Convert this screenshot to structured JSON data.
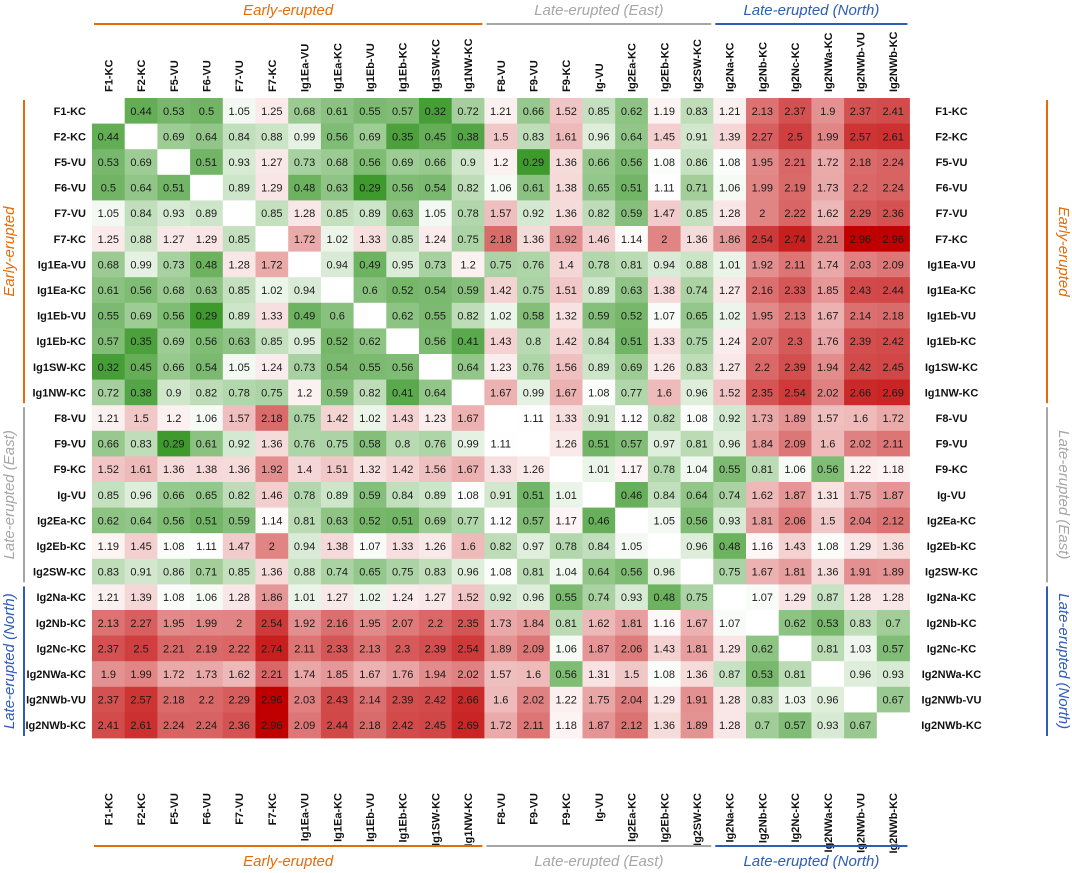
{
  "chart_data": {
    "type": "heatmap",
    "labels": [
      "F1-KC",
      "F2-KC",
      "F5-VU",
      "F6-VU",
      "F7-VU",
      "F7-KC",
      "Ig1Ea-VU",
      "Ig1Ea-KC",
      "Ig1Eb-VU",
      "Ig1Eb-KC",
      "Ig1SW-KC",
      "Ig1NW-KC",
      "F8-VU",
      "F9-VU",
      "F9-KC",
      "Ig-VU",
      "Ig2Ea-KC",
      "Ig2Eb-KC",
      "Ig2SW-KC",
      "Ig2Na-KC",
      "Ig2Nb-KC",
      "Ig2Nc-KC",
      "Ig2NWa-KC",
      "Ig2NWb-VU",
      "Ig2NWb-KC"
    ],
    "groups": [
      {
        "name": "Early-erupted",
        "start": 0,
        "end": 11,
        "color": "#E36C09"
      },
      {
        "name": "Late-erupted (East)",
        "start": 12,
        "end": 18,
        "color": "#A6A6A6"
      },
      {
        "name": "Late-erupted (North)",
        "start": 19,
        "end": 24,
        "color": "#2E5CB8"
      }
    ],
    "color_scale": {
      "low": "#3F9A2E",
      "mid": "#FFFFFF",
      "high": "#C00000",
      "mid_value": 1.1
    },
    "values": [
      [
        null,
        0.44,
        0.53,
        0.5,
        1.05,
        1.25,
        0.68,
        0.61,
        0.55,
        0.57,
        0.32,
        0.72,
        1.21,
        0.66,
        1.52,
        0.85,
        0.62,
        1.19,
        0.83,
        1.21,
        2.13,
        2.37,
        1.9,
        2.37,
        2.41
      ],
      [
        0.44,
        null,
        0.69,
        0.64,
        0.84,
        0.88,
        0.99,
        0.56,
        0.69,
        0.35,
        0.45,
        0.38,
        1.5,
        0.83,
        1.61,
        0.96,
        0.64,
        1.45,
        0.91,
        1.39,
        2.27,
        2.5,
        1.99,
        2.57,
        2.61
      ],
      [
        0.53,
        0.69,
        null,
        0.51,
        0.93,
        1.27,
        0.73,
        0.68,
        0.56,
        0.69,
        0.66,
        0.9,
        1.2,
        0.29,
        1.36,
        0.66,
        0.56,
        1.08,
        0.86,
        1.08,
        1.95,
        2.21,
        1.72,
        2.18,
        2.24
      ],
      [
        0.5,
        0.64,
        0.51,
        null,
        0.89,
        1.29,
        0.48,
        0.63,
        0.29,
        0.56,
        0.54,
        0.82,
        1.06,
        0.61,
        1.38,
        0.65,
        0.51,
        1.11,
        0.71,
        1.06,
        1.99,
        2.19,
        1.73,
        2.2,
        2.24
      ],
      [
        1.05,
        0.84,
        0.93,
        0.89,
        null,
        0.85,
        1.28,
        0.85,
        0.89,
        0.63,
        1.05,
        0.78,
        1.57,
        0.92,
        1.36,
        0.82,
        0.59,
        1.47,
        0.85,
        1.28,
        2,
        2.22,
        1.62,
        2.29,
        2.36
      ],
      [
        1.25,
        0.88,
        1.27,
        1.29,
        0.85,
        null,
        1.72,
        1.02,
        1.33,
        0.85,
        1.24,
        0.75,
        2.18,
        1.36,
        1.92,
        1.46,
        1.14,
        2,
        1.36,
        1.86,
        2.54,
        2.74,
        2.21,
        2.96,
        2.96
      ],
      [
        0.68,
        0.99,
        0.73,
        0.48,
        1.28,
        1.72,
        null,
        0.94,
        0.49,
        0.95,
        0.73,
        1.2,
        0.75,
        0.76,
        1.4,
        0.78,
        0.81,
        0.94,
        0.88,
        1.01,
        1.92,
        2.11,
        1.74,
        2.03,
        2.09
      ],
      [
        0.61,
        0.56,
        0.68,
        0.63,
        0.85,
        1.02,
        0.94,
        null,
        0.6,
        0.52,
        0.54,
        0.59,
        1.42,
        0.75,
        1.51,
        0.89,
        0.63,
        1.38,
        0.74,
        1.27,
        2.16,
        2.33,
        1.85,
        2.43,
        2.44
      ],
      [
        0.55,
        0.69,
        0.56,
        0.29,
        0.89,
        1.33,
        0.49,
        0.6,
        null,
        0.62,
        0.55,
        0.82,
        1.02,
        0.58,
        1.32,
        0.59,
        0.52,
        1.07,
        0.65,
        1.02,
        1.95,
        2.13,
        1.67,
        2.14,
        2.18
      ],
      [
        0.57,
        0.35,
        0.69,
        0.56,
        0.63,
        0.85,
        0.95,
        0.52,
        0.62,
        null,
        0.56,
        0.41,
        1.43,
        0.8,
        1.42,
        0.84,
        0.51,
        1.33,
        0.75,
        1.24,
        2.07,
        2.3,
        1.76,
        2.39,
        2.42
      ],
      [
        0.32,
        0.45,
        0.66,
        0.54,
        1.05,
        1.24,
        0.73,
        0.54,
        0.55,
        0.56,
        null,
        0.64,
        1.23,
        0.76,
        1.56,
        0.89,
        0.69,
        1.26,
        0.83,
        1.27,
        2.2,
        2.39,
        1.94,
        2.42,
        2.45
      ],
      [
        0.72,
        0.38,
        0.9,
        0.82,
        0.78,
        0.75,
        1.2,
        0.59,
        0.82,
        0.41,
        0.64,
        null,
        1.67,
        0.99,
        1.67,
        1.08,
        0.77,
        1.6,
        0.96,
        1.52,
        2.35,
        2.54,
        2.02,
        2.66,
        2.69
      ],
      [
        1.21,
        1.5,
        1.2,
        1.06,
        1.57,
        2.18,
        0.75,
        1.42,
        1.02,
        1.43,
        1.23,
        1.67,
        null,
        1.11,
        1.33,
        0.91,
        1.12,
        0.82,
        1.08,
        0.92,
        1.73,
        1.89,
        1.57,
        1.6,
        1.72
      ],
      [
        0.66,
        0.83,
        0.29,
        0.61,
        0.92,
        1.36,
        0.76,
        0.75,
        0.58,
        0.8,
        0.76,
        0.99,
        1.11,
        null,
        1.26,
        0.51,
        0.57,
        0.97,
        0.81,
        0.96,
        1.84,
        2.09,
        1.6,
        2.02,
        2.11
      ],
      [
        1.52,
        1.61,
        1.36,
        1.38,
        1.36,
        1.92,
        1.4,
        1.51,
        1.32,
        1.42,
        1.56,
        1.67,
        1.33,
        1.26,
        null,
        1.01,
        1.17,
        0.78,
        1.04,
        0.55,
        0.81,
        1.06,
        0.56,
        1.22,
        1.18
      ],
      [
        0.85,
        0.96,
        0.66,
        0.65,
        0.82,
        1.46,
        0.78,
        0.89,
        0.59,
        0.84,
        0.89,
        1.08,
        0.91,
        0.51,
        1.01,
        null,
        0.46,
        0.84,
        0.64,
        0.74,
        1.62,
        1.87,
        1.31,
        1.75,
        1.87
      ],
      [
        0.62,
        0.64,
        0.56,
        0.51,
        0.59,
        1.14,
        0.81,
        0.63,
        0.52,
        0.51,
        0.69,
        0.77,
        1.12,
        0.57,
        1.17,
        0.46,
        null,
        1.05,
        0.56,
        0.93,
        1.81,
        2.06,
        1.5,
        2.04,
        2.12
      ],
      [
        1.19,
        1.45,
        1.08,
        1.11,
        1.47,
        2,
        0.94,
        1.38,
        1.07,
        1.33,
        1.26,
        1.6,
        0.82,
        0.97,
        0.78,
        0.84,
        1.05,
        null,
        0.96,
        0.48,
        1.16,
        1.43,
        1.08,
        1.29,
        1.36
      ],
      [
        0.83,
        0.91,
        0.86,
        0.71,
        0.85,
        1.36,
        0.88,
        0.74,
        0.65,
        0.75,
        0.83,
        0.96,
        1.08,
        0.81,
        1.04,
        0.64,
        0.56,
        0.96,
        null,
        0.75,
        1.67,
        1.81,
        1.36,
        1.91,
        1.89
      ],
      [
        1.21,
        1.39,
        1.08,
        1.06,
        1.28,
        1.86,
        1.01,
        1.27,
        1.02,
        1.24,
        1.27,
        1.52,
        0.92,
        0.96,
        0.55,
        0.74,
        0.93,
        0.48,
        0.75,
        null,
        1.07,
        1.29,
        0.87,
        1.28,
        1.28
      ],
      [
        2.13,
        2.27,
        1.95,
        1.99,
        2,
        2.54,
        1.92,
        2.16,
        1.95,
        2.07,
        2.2,
        2.35,
        1.73,
        1.84,
        0.81,
        1.62,
        1.81,
        1.16,
        1.67,
        1.07,
        null,
        0.62,
        0.53,
        0.83,
        0.7
      ],
      [
        2.37,
        2.5,
        2.21,
        2.19,
        2.22,
        2.74,
        2.11,
        2.33,
        2.13,
        2.3,
        2.39,
        2.54,
        1.89,
        2.09,
        1.06,
        1.87,
        2.06,
        1.43,
        1.81,
        1.29,
        0.62,
        null,
        0.81,
        1.03,
        0.57
      ],
      [
        1.9,
        1.99,
        1.72,
        1.73,
        1.62,
        2.21,
        1.74,
        1.85,
        1.67,
        1.76,
        1.94,
        2.02,
        1.57,
        1.6,
        0.56,
        1.31,
        1.5,
        1.08,
        1.36,
        0.87,
        0.53,
        0.81,
        null,
        0.96,
        0.93
      ],
      [
        2.37,
        2.57,
        2.18,
        2.2,
        2.29,
        2.96,
        2.03,
        2.43,
        2.14,
        2.39,
        2.42,
        2.66,
        1.6,
        2.02,
        1.22,
        1.75,
        2.04,
        1.29,
        1.91,
        1.28,
        0.83,
        1.03,
        0.96,
        null,
        0.67
      ],
      [
        2.41,
        2.61,
        2.24,
        2.24,
        2.36,
        2.96,
        2.09,
        2.44,
        2.18,
        2.42,
        2.45,
        2.69,
        1.72,
        2.11,
        1.18,
        1.87,
        2.12,
        1.36,
        1.89,
        1.28,
        0.7,
        0.57,
        0.93,
        0.67,
        null
      ]
    ]
  }
}
